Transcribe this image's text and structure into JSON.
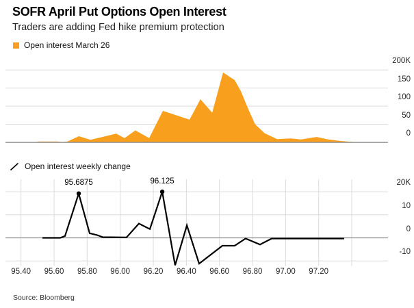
{
  "header": {
    "title": "SOFR April Put Options Open Interest",
    "subtitle": "Traders are adding Fed hike premium protection"
  },
  "source": "Source: Bloomberg",
  "colors": {
    "accent_orange": "#F8A01E",
    "line_black": "#000000",
    "grid_light": "#DBDBDB",
    "grid_zero": "#8C8C8C"
  },
  "x_axis": {
    "tick_labels": [
      "95.40",
      "95.60",
      "95.80",
      "96.00",
      "96.20",
      "96.40",
      "96.60",
      "96.80",
      "97.00",
      "97.20"
    ],
    "tick_values": [
      95.4,
      95.6,
      95.8,
      96.0,
      96.2,
      96.4,
      96.6,
      96.8,
      97.0,
      97.2
    ],
    "grid_values": [
      95.4,
      95.6,
      95.8,
      96.0,
      96.2,
      96.4,
      96.6,
      96.8,
      97.0,
      97.2,
      97.4
    ]
  },
  "chart_data": [
    {
      "type": "area",
      "name": "Open interest March 26",
      "color": "#F8A01E",
      "legend_position": "top-left",
      "grid": "horizontal",
      "y_ticks": [
        {
          "label": "200K",
          "value": 200
        },
        {
          "label": "150",
          "value": 150
        },
        {
          "label": "100",
          "value": 100
        },
        {
          "label": "50",
          "value": 50
        },
        {
          "label": "0",
          "value": 0
        }
      ],
      "ylim": [
        0,
        210
      ],
      "points": [
        [
          95.48,
          0
        ],
        [
          95.51,
          2.5
        ],
        [
          95.62,
          2.5
        ],
        [
          95.65,
          1
        ],
        [
          95.68,
          2
        ],
        [
          95.75,
          17
        ],
        [
          95.82,
          7
        ],
        [
          95.976,
          24
        ],
        [
          96.026,
          12
        ],
        [
          96.092,
          33
        ],
        [
          96.175,
          12
        ],
        [
          96.258,
          87
        ],
        [
          96.419,
          63
        ],
        [
          96.485,
          119
        ],
        [
          96.556,
          82
        ],
        [
          96.622,
          193
        ],
        [
          96.692,
          172
        ],
        [
          96.73,
          141
        ],
        [
          96.775,
          91
        ],
        [
          96.816,
          50
        ],
        [
          96.874,
          25
        ],
        [
          96.949,
          9
        ],
        [
          97.031,
          11
        ],
        [
          97.093,
          8
        ],
        [
          97.188,
          15
        ],
        [
          97.259,
          8
        ],
        [
          97.329,
          4
        ],
        [
          97.437,
          0
        ]
      ],
      "unit": "thousands of contracts"
    },
    {
      "type": "line",
      "name": "Open interest weekly change",
      "color": "#000000",
      "legend_position": "above-chart",
      "grid": "both",
      "y_ticks": [
        {
          "label": "20K",
          "value": 20
        },
        {
          "label": "10",
          "value": 10
        },
        {
          "label": "0",
          "value": 0
        },
        {
          "label": "-10",
          "value": -10
        }
      ],
      "ylim": [
        -12.5,
        25
      ],
      "points": [
        [
          95.53,
          0
        ],
        [
          95.637,
          0
        ],
        [
          95.666,
          0.8
        ],
        [
          95.749,
          19.2
        ],
        [
          95.815,
          2
        ],
        [
          95.861,
          1.2
        ],
        [
          95.894,
          0.3
        ],
        [
          96.038,
          0.2
        ],
        [
          96.113,
          6.2
        ],
        [
          96.179,
          3.8
        ],
        [
          96.254,
          20
        ],
        [
          96.332,
          -11.9
        ],
        [
          96.403,
          5.4
        ],
        [
          96.477,
          -11.2
        ],
        [
          96.618,
          -3.4
        ],
        [
          96.692,
          -3.4
        ],
        [
          96.758,
          -0.3
        ],
        [
          96.845,
          -2.9
        ],
        [
          96.916,
          -0.3
        ],
        [
          97.354,
          -0.3
        ]
      ],
      "annotations": [
        {
          "label": "95.6875",
          "x": 95.749,
          "y": 19.2
        },
        {
          "label": "96.125",
          "x": 96.254,
          "y": 20
        }
      ],
      "unit": "thousands of contracts"
    }
  ]
}
